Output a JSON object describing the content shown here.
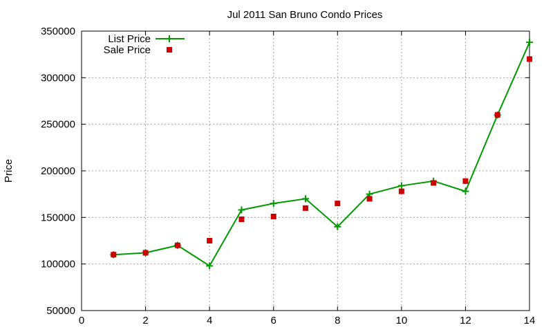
{
  "chart_data": {
    "type": "line",
    "title": "Jul 2011 San Bruno Condo Prices",
    "xlabel": "",
    "ylabel": "Price",
    "xlim": [
      0,
      14
    ],
    "ylim": [
      50000,
      350000
    ],
    "x_ticks": [
      0,
      2,
      4,
      6,
      8,
      10,
      12,
      14
    ],
    "y_ticks": [
      50000,
      100000,
      150000,
      200000,
      250000,
      300000,
      350000
    ],
    "x_tick_labels": [
      "0",
      "2",
      "4",
      "6",
      "8",
      "10",
      "12",
      "14"
    ],
    "y_tick_labels": [
      "50000",
      "100000",
      "150000",
      "200000",
      "250000",
      "300000",
      "350000"
    ],
    "grid": true,
    "legend_position": "top-left",
    "series": [
      {
        "name": "List Price",
        "style": "line-points",
        "marker": "plus",
        "color": "#009900",
        "x": [
          1,
          2,
          3,
          4,
          5,
          6,
          7,
          8,
          9,
          10,
          11,
          12,
          13,
          14
        ],
        "y": [
          110000,
          112000,
          120000,
          98000,
          158000,
          165000,
          170000,
          140000,
          175000,
          184000,
          189000,
          178000,
          260000,
          338000
        ]
      },
      {
        "name": "Sale Price",
        "style": "points",
        "marker": "square",
        "color": "#cc0000",
        "x": [
          1,
          2,
          3,
          4,
          5,
          6,
          7,
          8,
          9,
          10,
          11,
          12,
          13,
          14
        ],
        "y": [
          110000,
          112000,
          120000,
          125000,
          148000,
          151000,
          160000,
          165000,
          170000,
          178000,
          187000,
          189000,
          260000,
          320000
        ]
      }
    ]
  }
}
